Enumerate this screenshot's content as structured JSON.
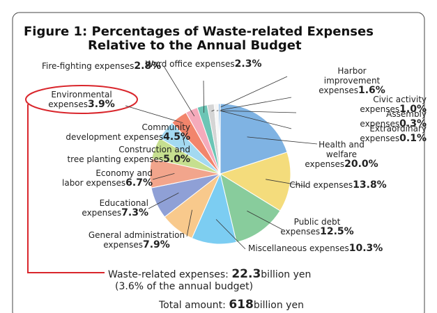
{
  "chart_data": {
    "type": "pie",
    "title": [
      "Figure 1: Percentages of Waste-related Expenses",
      "Relative to the Annual Budget"
    ],
    "categories": [
      "Health and\nwelfare expenses",
      "Child expenses",
      "Public debt\nexpenses",
      "Miscellaneous expenses",
      "General administration\nexpenses",
      "Educational\nexpenses",
      "Economy and\nlabor expenses",
      "Construction and\ntree planting expenses",
      "Community\ndevelopment expenses",
      "Environmental\nexpenses",
      "Fire-fighting expenses",
      "Ward office expenses",
      "Harbor improvement expenses",
      "Civic activity expenses",
      "Assembly expenses",
      "Extraordinary expenses"
    ],
    "values": [
      20.0,
      13.8,
      12.5,
      10.3,
      7.9,
      7.3,
      6.7,
      5.0,
      4.5,
      3.9,
      2.8,
      2.3,
      1.6,
      1.0,
      0.3,
      0.1
    ],
    "value_labels": [
      "20.0%",
      "13.8%",
      "12.5%",
      "10.3%",
      "7.9%",
      "7.3%",
      "6.7%",
      "5.0%",
      "4.5%",
      "3.9%",
      "2.8%",
      "2.3%",
      "1.6%",
      "1.0%",
      "0.3%",
      "0.1%"
    ],
    "colors": [
      "#7fb3e3",
      "#f4dc7c",
      "#88cc9c",
      "#7ccdf2",
      "#f8c98c",
      "#8fa0d6",
      "#f2a58c",
      "#c6df8f",
      "#a3d9f1",
      "#f2856c",
      "#f5aabb",
      "#6cc5b5",
      "#d5d5d5",
      "#f6f6f6",
      "#3f8fd8",
      "#f5b82e"
    ],
    "highlight": "Environmental\nexpenses",
    "footer": {
      "waste": [
        "Waste-related expenses:",
        "22.3",
        "billion yen"
      ],
      "share": "(3.6% of the annual budget)",
      "total": [
        "Total amount:",
        "618",
        "billion yen"
      ]
    }
  }
}
